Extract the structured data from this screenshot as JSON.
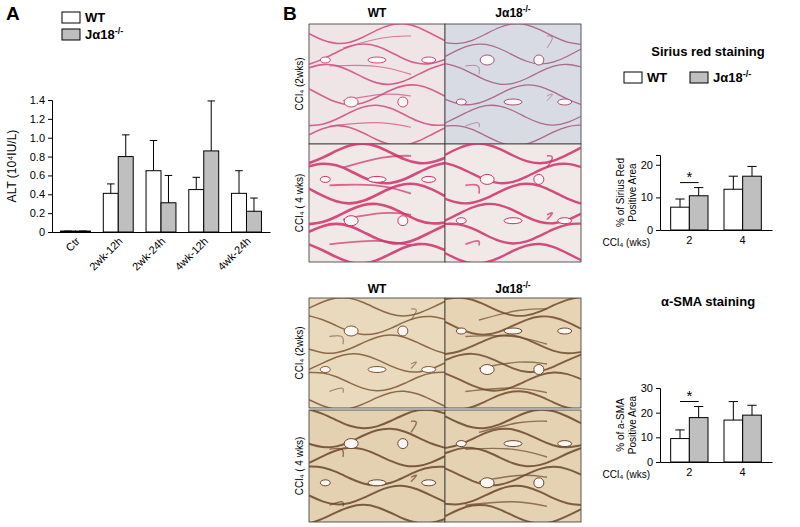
{
  "figure": {
    "panel_labels": [
      "A",
      "B"
    ],
    "micrographs": [
      {
        "column_labels": [
          "WT",
          "Jα18-/-"
        ],
        "row_labels": [
          "CCl₄ (2wks)",
          "CCl₄ ( 4 wks)"
        ]
      },
      {
        "column_labels": [
          "WT",
          "Jα18-/-"
        ],
        "row_labels": [
          "CCl₄ (2wks)",
          "CCl₄ ( 4 wks)"
        ]
      }
    ]
  },
  "chart_data": [
    {
      "type": "bar",
      "y_label": "ALT (10⁴IU/L)",
      "categories": [
        "Ctr",
        "2wk-12h",
        "2wk-24h",
        "4wk-12h",
        "4wk-24h"
      ],
      "series": [
        {
          "name": "WT",
          "color": "#ffffff",
          "values": [
            0.01,
            0.41,
            0.65,
            0.45,
            0.41
          ],
          "errors": [
            0,
            0.1,
            0.32,
            0.13,
            0.24
          ]
        },
        {
          "name": "Jα18-/-",
          "color": "#bfbfbf",
          "values": [
            0.01,
            0.8,
            0.31,
            0.86,
            0.22
          ],
          "errors": [
            0,
            0.23,
            0.29,
            0.53,
            0.14
          ]
        }
      ],
      "ylim": [
        0,
        1.4
      ],
      "yticks": [
        0,
        0.2,
        0.4,
        0.6,
        0.8,
        {
          "value": 1,
          "label": "1.0"
        },
        1.2,
        1.4
      ],
      "legend": "top-left"
    },
    {
      "type": "bar",
      "title": "Sirius red staining",
      "y_label": [
        "% of Sirius Red",
        "Positive Area"
      ],
      "x_label": "CCl₄ (wks)",
      "categories": [
        "2",
        "4"
      ],
      "series": [
        {
          "name": "WT",
          "color": "#ffffff",
          "values": [
            7,
            12.5
          ],
          "errors": [
            2.5,
            4
          ]
        },
        {
          "name": "Jα18-/-",
          "color": "#bfbfbf",
          "values": [
            10.5,
            16.5
          ],
          "errors": [
            2.5,
            3
          ]
        }
      ],
      "ylim": [
        0,
        23
      ],
      "yticks": [
        0,
        10,
        20
      ],
      "legend": "top",
      "annotations": [
        {
          "text": "*",
          "category": "2"
        }
      ]
    },
    {
      "type": "bar",
      "title": "α-SMA staining",
      "y_label": [
        "% of a-SMA",
        "Positive Area"
      ],
      "x_label": "CCl₄ (wks)",
      "categories": [
        "2",
        "4"
      ],
      "series": [
        {
          "name": "WT",
          "color": "#ffffff",
          "values": [
            9.5,
            17
          ],
          "errors": [
            3.5,
            7.5
          ]
        },
        {
          "name": "Jα18-/-",
          "color": "#bfbfbf",
          "values": [
            18,
            19
          ],
          "errors": [
            4.5,
            4
          ]
        }
      ],
      "ylim": [
        0,
        30
      ],
      "yticks": [
        0,
        10,
        20,
        30
      ],
      "annotations": [
        {
          "text": "*",
          "category": "2"
        }
      ]
    }
  ]
}
